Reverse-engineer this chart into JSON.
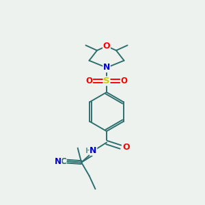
{
  "bg_color": "#eef2ee",
  "bond_color": "#2d6e6e",
  "atom_colors": {
    "O": "#ff0000",
    "N": "#0000cc",
    "S": "#cccc00",
    "C": "#2d6e6e",
    "H": "#7a9a9a"
  }
}
